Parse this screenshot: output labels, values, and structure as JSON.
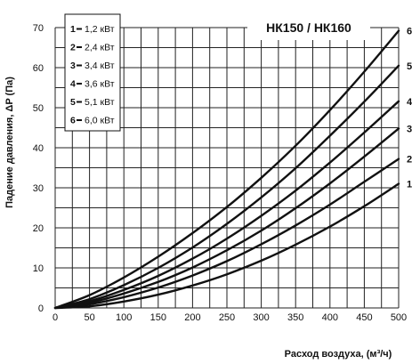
{
  "chart_data": {
    "type": "line",
    "title": "НК150 / НК160",
    "xlabel": "Расход воздуха, (м³/ч)",
    "ylabel": "Падение давления, ΔP (Па)",
    "xlim": [
      0,
      500
    ],
    "ylim": [
      0,
      70
    ],
    "x_ticks": [
      0,
      50,
      100,
      150,
      200,
      250,
      300,
      350,
      400,
      450,
      500
    ],
    "y_ticks": [
      0,
      10,
      20,
      30,
      40,
      50,
      60,
      70
    ],
    "grid": true,
    "legend_position": "top-left",
    "legend": [
      {
        "num": "1",
        "text": "1,2 кВт"
      },
      {
        "num": "2",
        "text": "2,4 кВт"
      },
      {
        "num": "3",
        "text": "3,4 кВт"
      },
      {
        "num": "4",
        "text": "3,6 кВт"
      },
      {
        "num": "5",
        "text": "5,1 кВт"
      },
      {
        "num": "6",
        "text": "6,0 кВт"
      }
    ],
    "x": [
      0,
      50,
      100,
      150,
      200,
      250,
      300,
      350,
      400,
      450,
      500
    ],
    "series": [
      {
        "name": "1",
        "values": [
          0,
          0.4,
          1.6,
          3.3,
          5.6,
          8.4,
          11.8,
          15.8,
          20.3,
          25.4,
          31
        ]
      },
      {
        "name": "2",
        "values": [
          0,
          0.9,
          2.7,
          5.1,
          8.1,
          11.7,
          15.9,
          20.6,
          25.8,
          31.5,
          37.2
        ]
      },
      {
        "name": "3",
        "values": [
          0,
          1.3,
          3.6,
          6.5,
          10.1,
          14.4,
          19.3,
          24.9,
          31.1,
          37.8,
          44.8
        ]
      },
      {
        "name": "4",
        "values": [
          0,
          1.7,
          4.5,
          8.0,
          12.3,
          17.3,
          23.0,
          29.3,
          36.3,
          43.8,
          51.6
        ]
      },
      {
        "name": "5",
        "values": [
          0,
          2.2,
          5.7,
          10.0,
          15.1,
          21.0,
          27.6,
          34.9,
          43.0,
          51.5,
          60.5
        ]
      },
      {
        "name": "6",
        "values": [
          0,
          3.2,
          7.6,
          12.8,
          18.7,
          25.2,
          32.5,
          40.5,
          49.4,
          59.0,
          69.2
        ]
      }
    ]
  }
}
